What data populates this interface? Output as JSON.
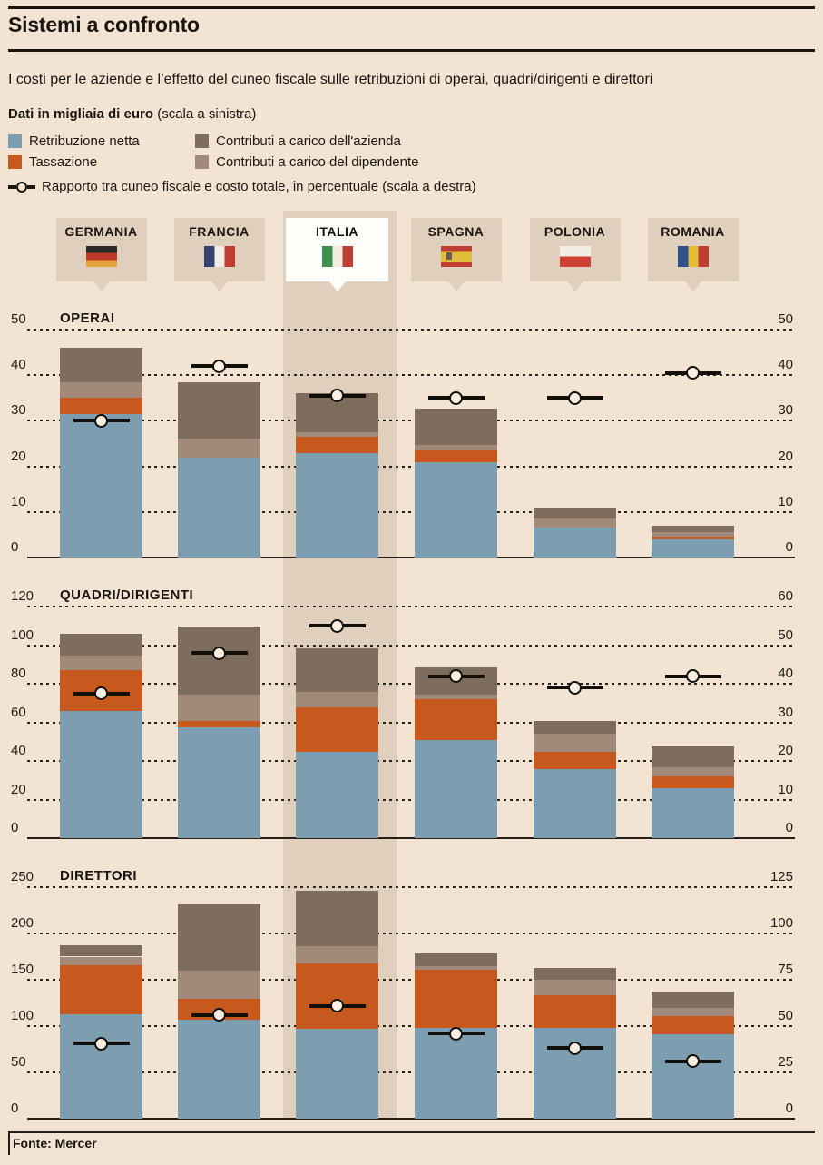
{
  "header": {
    "title": "Sistemi a confronto"
  },
  "subtitle": "I costi per le aziende e l’effetto del cuneo fiscale sulle retribuzioni di operai, quadri/dirigenti e direttori",
  "legend": {
    "scale_note_bold": "Dati in migliaia di euro",
    "scale_note_rest": " (scala a sinistra)",
    "items": [
      {
        "label": "Retribuzione netta",
        "color": "#7d9eb1"
      },
      {
        "label": "Contributi a carico dell'azienda",
        "color": "#7e6c5c"
      },
      {
        "label": "Tassazione",
        "color": "#c7581e"
      },
      {
        "label": "Contributi a carico del dipendente",
        "color": "#a18a79"
      }
    ],
    "line_label": "Rapporto tra cuneo fiscale e costo totale, in percentuale (scala a destra)"
  },
  "countries": [
    {
      "name": "GERMANIA",
      "highlight": false,
      "flag": {
        "dir": "h",
        "stripes": [
          [
            "#2e2a27",
            33.4
          ],
          [
            "#bf3a2b",
            33.3
          ],
          [
            "#e2a23c",
            33.3
          ]
        ],
        "emblem": false
      }
    },
    {
      "name": "FRANCIA",
      "highlight": false,
      "flag": {
        "dir": "v",
        "stripes": [
          [
            "#354272",
            33.4
          ],
          [
            "#f3eee4",
            33.3
          ],
          [
            "#c03d32",
            33.3
          ]
        ],
        "emblem": false
      }
    },
    {
      "name": "ITALIA",
      "highlight": true,
      "flag": {
        "dir": "v",
        "stripes": [
          [
            "#3f8f4f",
            33.4
          ],
          [
            "#f3eee4",
            33.3
          ],
          [
            "#c03d32",
            33.3
          ]
        ],
        "emblem": false
      }
    },
    {
      "name": "SPAGNA",
      "highlight": false,
      "flag": {
        "dir": "h",
        "stripes": [
          [
            "#c03d32",
            25
          ],
          [
            "#e2bd3a",
            50
          ],
          [
            "#c03d32",
            25
          ]
        ],
        "emblem": true
      }
    },
    {
      "name": "POLONIA",
      "highlight": false,
      "flag": {
        "dir": "h",
        "stripes": [
          [
            "#f3eee4",
            50
          ],
          [
            "#cf4335",
            50
          ]
        ],
        "emblem": false
      }
    },
    {
      "name": "ROMANIA",
      "highlight": false,
      "flag": {
        "dir": "v",
        "stripes": [
          [
            "#32508c",
            33.4
          ],
          [
            "#e2bd3a",
            33.3
          ],
          [
            "#c03d32",
            33.3
          ]
        ],
        "emblem": false
      }
    }
  ],
  "chart_data": [
    {
      "type": "bar",
      "title": "OPERAI",
      "unit": "migliaia di euro",
      "categories": [
        "Germania",
        "Francia",
        "Italia",
        "Spagna",
        "Polonia",
        "Romania"
      ],
      "left_axis": {
        "min": 0,
        "max": 50,
        "ticks": [
          0,
          10,
          20,
          30,
          40,
          50
        ]
      },
      "right_axis": {
        "min": 0,
        "max": 50,
        "ticks": [
          0,
          10,
          20,
          30,
          40,
          50
        ]
      },
      "series": [
        {
          "name": "Retribuzione netta",
          "color": "#7d9eb1",
          "values": [
            31.5,
            22,
            23,
            21,
            6.6,
            4
          ]
        },
        {
          "name": "Tassazione",
          "color": "#c7581e",
          "values": [
            3.5,
            0,
            3.5,
            2.5,
            0,
            0.5
          ]
        },
        {
          "name": "Contributi a carico del dipendente",
          "color": "#a18a79",
          "values": [
            3.5,
            4,
            1,
            1.2,
            2,
            1
          ]
        },
        {
          "name": "Contributi a carico dell'azienda",
          "color": "#7e6c5c",
          "values": [
            7.5,
            12.5,
            8.5,
            8,
            2.1,
            1.5
          ]
        }
      ],
      "marker_series": {
        "name": "Rapporto tra cuneo fiscale e costo totale, in percentuale",
        "axis": "right",
        "values": [
          30,
          42,
          35.5,
          35,
          35,
          40.5
        ]
      }
    },
    {
      "type": "bar",
      "title": "QUADRI/DIRIGENTI",
      "unit": "migliaia di euro",
      "categories": [
        "Germania",
        "Francia",
        "Italia",
        "Spagna",
        "Polonia",
        "Romania"
      ],
      "left_axis": {
        "min": 0,
        "max": 120,
        "ticks": [
          0,
          20,
          40,
          60,
          80,
          100,
          120
        ]
      },
      "right_axis": {
        "min": 0,
        "max": 60,
        "ticks": [
          0,
          10,
          20,
          30,
          40,
          50,
          60
        ]
      },
      "series": [
        {
          "name": "Retribuzione netta",
          "color": "#7d9eb1",
          "values": [
            66,
            57.5,
            44.5,
            51,
            36,
            26
          ]
        },
        {
          "name": "Tassazione",
          "color": "#c7581e",
          "values": [
            21,
            3,
            23.5,
            21,
            8.5,
            6
          ]
        },
        {
          "name": "Contributi a carico del dipendente",
          "color": "#a18a79",
          "values": [
            7.5,
            14,
            8,
            2.5,
            9.5,
            4.5
          ]
        },
        {
          "name": "Contributi a carico dell'azienda",
          "color": "#7e6c5c",
          "values": [
            11.5,
            35,
            22.5,
            14,
            6.5,
            11
          ]
        }
      ],
      "marker_series": {
        "name": "Rapporto tra cuneo fiscale e costo totale, in percentuale",
        "axis": "right",
        "values": [
          37.5,
          48,
          55,
          42,
          39,
          42
        ]
      }
    },
    {
      "type": "bar",
      "title": "DIRETTORI",
      "unit": "migliaia di euro",
      "categories": [
        "Germania",
        "Francia",
        "Italia",
        "Spagna",
        "Polonia",
        "Romania"
      ],
      "left_axis": {
        "min": 0,
        "max": 250,
        "ticks": [
          0,
          50,
          100,
          150,
          200,
          250
        ]
      },
      "right_axis": {
        "min": 0,
        "max": 125,
        "ticks": [
          0,
          25,
          50,
          75,
          100,
          125
        ]
      },
      "series": [
        {
          "name": "Retribuzione netta",
          "color": "#7d9eb1",
          "values": [
            113,
            107,
            97,
            98,
            98,
            91
          ]
        },
        {
          "name": "Tassazione",
          "color": "#c7581e",
          "values": [
            53,
            22,
            71,
            63,
            35,
            20
          ]
        },
        {
          "name": "Contributi a carico del dipendente",
          "color": "#a18a79",
          "values": [
            9,
            31,
            18,
            4,
            17,
            9
          ]
        },
        {
          "name": "Contributi a carico dell'azienda",
          "color": "#7e6c5c",
          "values": [
            12,
            71,
            60,
            13,
            13,
            17
          ]
        }
      ],
      "marker_series": {
        "name": "Rapporto tra cuneo fiscale e costo totale, in percentuale",
        "axis": "right",
        "values": [
          40.5,
          56,
          61,
          46,
          38,
          31
        ]
      }
    }
  ],
  "footer": {
    "source": "Fonte: Mercer"
  },
  "palette": {
    "background": "#f3e3d3",
    "band": "#e0cfbc",
    "ink": "#1d1711",
    "marker_fill": "#f8efe2"
  }
}
